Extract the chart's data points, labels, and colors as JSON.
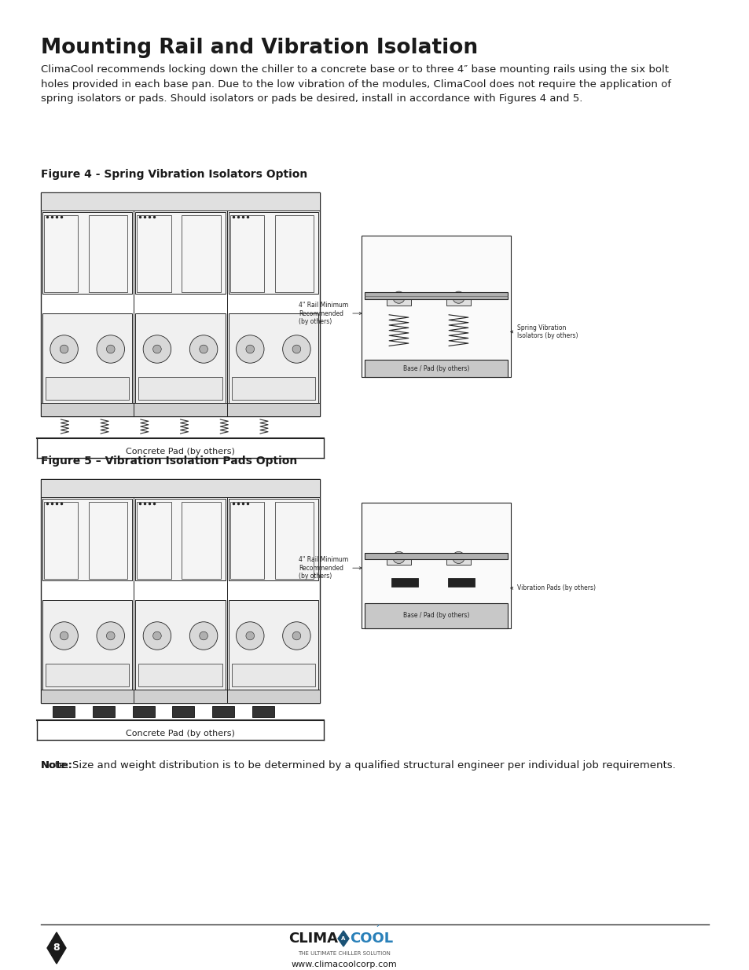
{
  "title": "Mounting Rail and Vibration Isolation",
  "body_text": "ClimaCool recommends locking down the chiller to a concrete base or to three 4″ base mounting rails using the six bolt\nholes provided in each base pan. Due to the low vibration of the modules, ClimaCool does not require the application of\nspring isolators or pads. Should isolators or pads be desired, install in accordance with Figures 4 and 5.",
  "fig4_caption": "Figure 4 - Spring Vibration Isolators Option",
  "fig5_caption": "Figure 5 – Vibration Isolation Pads Option",
  "note_text": "Note: Size and weight distribution is to be determined by a qualified structural engineer per individual job requirements.",
  "footer_page": "8",
  "footer_tagline": "THE ULTIMATE CHILLER SOLUTION",
  "footer_url": "www.climacoolcorp.com",
  "bg_color": "#ffffff",
  "text_color": "#000000"
}
